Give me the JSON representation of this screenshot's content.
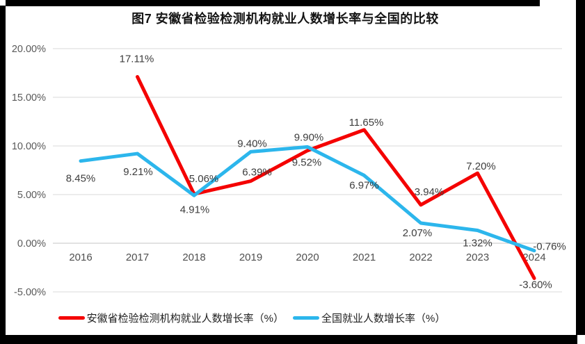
{
  "page": {
    "background": "#ffffff",
    "frame_color": "#000000"
  },
  "chart_data": {
    "type": "line",
    "title": "图7  安徽省检验检测机构就业人数增长率与全国的比较",
    "categories": [
      "2016",
      "2017",
      "2018",
      "2019",
      "2020",
      "2021",
      "2022",
      "2023",
      "2024"
    ],
    "y_axis": {
      "min": -5,
      "max": 20,
      "step": 5,
      "tick_labels": [
        "20.00%",
        "15.00%",
        "10.00%",
        "5.00%",
        "0.00%",
        "-5.00%"
      ]
    },
    "grid": true,
    "gridline_color": "#d9d9d9",
    "zero_line_color": "#c6c6c6",
    "axis_label_color": "#595959",
    "data_label_color": "#3d3d3d",
    "legend_position": "bottom",
    "series": [
      {
        "name": "安徽省检验检测机构就业人数增长率（%）",
        "color": "#F40000",
        "values": [
          null,
          17.11,
          5.06,
          6.39,
          9.52,
          11.65,
          3.94,
          7.2,
          -3.6
        ],
        "labels": [
          "",
          "17.11%",
          "5.06%",
          "6.39%",
          "9.52%",
          "11.65%",
          "3.94%",
          "7.20%",
          "-3.60%"
        ],
        "label_offsets": [
          [
            0,
            0
          ],
          [
            -1,
            -26
          ],
          [
            14,
            -22
          ],
          [
            9,
            -13
          ],
          [
            -1,
            17
          ],
          [
            3,
            -11
          ],
          [
            12,
            -19
          ],
          [
            5,
            -10
          ],
          [
            2,
            9
          ]
        ]
      },
      {
        "name": "全国就业人数增长率（%）",
        "color": "#2CB6EC",
        "values": [
          8.45,
          9.21,
          4.91,
          9.4,
          9.9,
          6.97,
          2.07,
          1.32,
          -0.76
        ],
        "labels": [
          "8.45%",
          "9.21%",
          "4.91%",
          "9.40%",
          "9.90%",
          "6.97%",
          "2.07%",
          "1.32%",
          "-0.76%"
        ],
        "label_offsets": [
          [
            0,
            25
          ],
          [
            1,
            26
          ],
          [
            1,
            20
          ],
          [
            2,
            -12
          ],
          [
            2,
            -14
          ],
          [
            0,
            14
          ],
          [
            -5,
            14
          ],
          [
            0,
            18
          ],
          [
            22,
            -6
          ]
        ]
      }
    ]
  }
}
